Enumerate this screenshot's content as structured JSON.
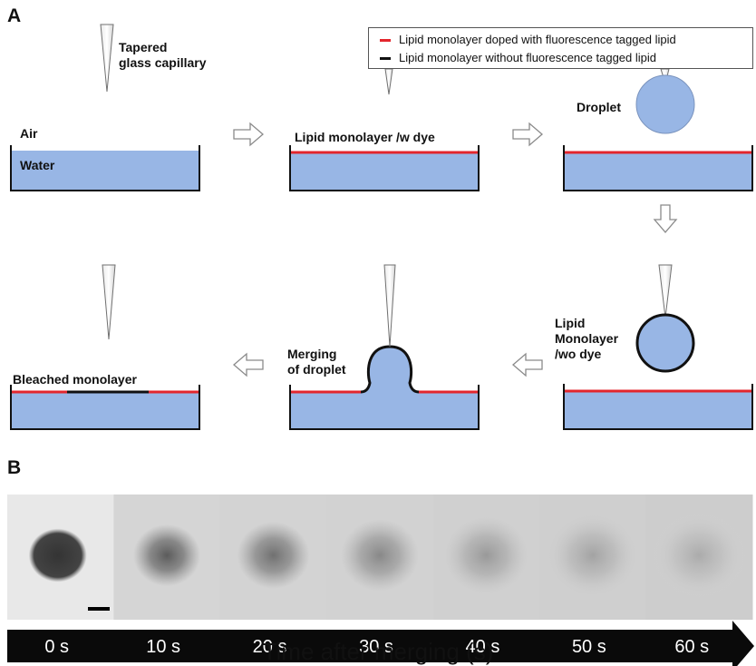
{
  "panel_a": {
    "letter": "A",
    "labels": {
      "capillary": [
        "Tapered",
        "glass capillary"
      ],
      "air": "Air",
      "water": "Water",
      "monolayer_with_dye": "Lipid monolayer /w dye",
      "droplet": "Droplet",
      "monolayer_without_dye": [
        "Lipid",
        "Monolayer",
        "/wo dye"
      ],
      "merging": [
        "Merging",
        "of droplet"
      ],
      "bleached": "Bleached monolayer"
    },
    "legend": [
      {
        "label": "Lipid monolayer doped with fluorescence tagged lipid",
        "color": "#e3262d"
      },
      {
        "label": "Lipid monolayer without fluorescence tagged lipid",
        "color": "#111111"
      }
    ],
    "colors": {
      "water": "#98b6e5",
      "droplet": "#98b6e5",
      "dyed_monolayer": "#e3262d",
      "undyed_monolayer": "#111111",
      "arrow_stroke": "#8a8a8a"
    }
  },
  "panel_b": {
    "letter": "B",
    "timepoints": [
      {
        "label": "0 s",
        "spot_darkness": 0.92
      },
      {
        "label": "10 s",
        "spot_darkness": 0.66
      },
      {
        "label": "20 s",
        "spot_darkness": 0.52
      },
      {
        "label": "30 s",
        "spot_darkness": 0.36
      },
      {
        "label": "40 s",
        "spot_darkness": 0.25
      },
      {
        "label": "50 s",
        "spot_darkness": 0.18
      },
      {
        "label": "60 s",
        "spot_darkness": 0.13
      }
    ],
    "axis_title": "Time after merging (s)"
  }
}
